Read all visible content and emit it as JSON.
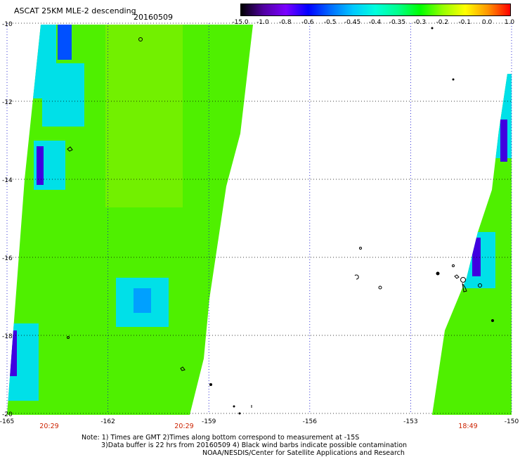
{
  "header": {
    "title": "ASCAT 25KM MLE-2 descending",
    "date": "20160509"
  },
  "colorbar": {
    "labels": [
      "-15.0",
      "-1.0",
      "-0.8",
      "-0.6",
      "-0.5",
      "-0.45",
      "-0.4",
      "-0.35",
      "-0.3",
      "-0.2",
      "-0.1",
      "0.0",
      "1.0"
    ],
    "colors": [
      "#000000",
      "#5000a0",
      "#7a00ff",
      "#0000ff",
      "#006cff",
      "#00c8ff",
      "#00ffdc",
      "#00ff8c",
      "#00ff00",
      "#96ff00",
      "#ffff00",
      "#ff9600",
      "#ff0000"
    ]
  },
  "map": {
    "lat_labels": [
      "-10",
      "-12",
      "-14",
      "-16",
      "-18",
      "-20"
    ],
    "lon_labels": [
      "-165",
      "-162",
      "-159",
      "-156",
      "-153",
      "-150"
    ],
    "lat_range": [
      -20,
      -10
    ],
    "lon_range": [
      -165,
      -150
    ],
    "swath_times": [
      "20:29",
      "20:29",
      "18:49"
    ],
    "colors": {
      "swath": "#4ff000",
      "swath_light": "#7af000",
      "cyan": "#00e0e8",
      "blue": "#0050ff",
      "violet": "#4000e0",
      "time_label": "#cc2200"
    }
  },
  "notes": {
    "line1": "Note: 1) Times are GMT 2)Times along bottom correspond to measurement at -15S",
    "line2": "3)Data buffer is 22 hrs from 20160509  4) Black wind barbs indicate possible contamination",
    "line3": "NOAA/NESDIS/Center for Satellite Applications and Research"
  }
}
